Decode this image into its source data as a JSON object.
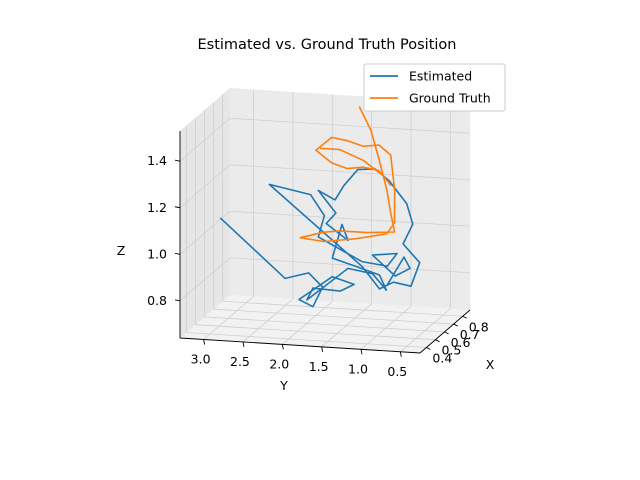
{
  "chart_data": {
    "type": "line",
    "projection": "3d",
    "title": "Estimated vs. Ground Truth Position",
    "xlabel": "X",
    "ylabel": "Y",
    "zlabel": "Z",
    "xlim": [
      0.33,
      0.88
    ],
    "ylim": [
      0.25,
      3.3
    ],
    "zlim": [
      0.64,
      1.53
    ],
    "x_ticks": [
      0.4,
      0.5,
      0.6,
      0.7,
      0.8
    ],
    "x_tick_labels": [
      "0.4",
      "0.5",
      "0.6",
      "0.7",
      "0.8"
    ],
    "y_ticks": [
      0.5,
      1.0,
      1.5,
      2.0,
      2.5,
      3.0
    ],
    "y_tick_labels": [
      "0.5",
      "1.0",
      "1.5",
      "2.0",
      "2.5",
      "3.0"
    ],
    "z_ticks": [
      0.8,
      1.0,
      1.2,
      1.4
    ],
    "z_tick_labels": [
      "0.8",
      "1.0",
      "1.2",
      "1.4"
    ],
    "grid": true,
    "legend_position": "top-right",
    "series": [
      {
        "name": "Estimated",
        "color": "#1f77b4",
        "points": [
          [
            0.6,
            3.1,
            1.07
          ],
          [
            0.62,
            2.3,
            0.82
          ],
          [
            0.62,
            2.0,
            0.85
          ],
          [
            0.6,
            1.8,
            0.8
          ],
          [
            0.58,
            1.9,
            0.72
          ],
          [
            0.6,
            2.1,
            0.74
          ],
          [
            0.62,
            1.7,
            0.84
          ],
          [
            0.6,
            1.4,
            0.82
          ],
          [
            0.62,
            1.6,
            0.78
          ],
          [
            0.58,
            1.9,
            0.8
          ],
          [
            0.6,
            2.0,
            0.74
          ],
          [
            0.62,
            1.5,
            0.88
          ],
          [
            0.63,
            1.2,
            0.86
          ],
          [
            0.61,
            1.0,
            0.8
          ],
          [
            0.62,
            1.1,
            0.86
          ],
          [
            0.6,
            1.4,
            0.9
          ],
          [
            0.62,
            1.7,
            0.92
          ],
          [
            0.64,
            1.6,
            1.06
          ],
          [
            0.62,
            1.5,
            1.0
          ],
          [
            0.64,
            1.8,
            1.06
          ],
          [
            0.66,
            1.7,
            1.1
          ],
          [
            0.64,
            1.9,
            1.2
          ],
          [
            0.65,
            1.7,
            1.16
          ],
          [
            0.66,
            1.6,
            1.22
          ],
          [
            0.64,
            1.4,
            1.3
          ],
          [
            0.66,
            1.2,
            1.3
          ],
          [
            0.64,
            1.0,
            1.26
          ],
          [
            0.66,
            0.8,
            1.16
          ],
          [
            0.64,
            0.7,
            1.08
          ],
          [
            0.62,
            0.8,
            1.0
          ],
          [
            0.63,
            0.6,
            0.92
          ],
          [
            0.62,
            0.7,
            0.82
          ],
          [
            0.6,
            0.9,
            0.84
          ],
          [
            0.62,
            1.1,
            0.8
          ],
          [
            0.6,
            1.3,
            0.9
          ],
          [
            0.62,
            2.5,
            1.22
          ],
          [
            0.64,
            2.0,
            1.18
          ],
          [
            0.62,
            1.8,
            1.1
          ],
          [
            0.64,
            1.9,
            1.0
          ],
          [
            0.62,
            1.6,
            0.96
          ],
          [
            0.6,
            1.3,
            0.92
          ],
          [
            0.62,
            1.0,
            0.9
          ],
          [
            0.64,
            0.9,
            0.95
          ],
          [
            0.63,
            1.2,
            0.94
          ],
          [
            0.62,
            0.9,
            0.86
          ],
          [
            0.61,
            0.7,
            0.9
          ],
          [
            0.63,
            0.8,
            0.94
          ],
          [
            0.62,
            1.0,
            0.82
          ]
        ]
      },
      {
        "name": "Ground Truth",
        "color": "#ff7f0e",
        "points": [
          [
            0.7,
            1.45,
            1.55
          ],
          [
            0.7,
            1.3,
            1.45
          ],
          [
            0.7,
            1.2,
            1.33
          ],
          [
            0.7,
            1.1,
            1.2
          ],
          [
            0.7,
            1.05,
            1.1
          ],
          [
            0.7,
            1.0,
            1.02
          ],
          [
            0.7,
            1.35,
            1.01
          ],
          [
            0.7,
            1.7,
            1.01
          ],
          [
            0.7,
            1.9,
            1.0
          ],
          [
            0.7,
            2.2,
            0.97
          ],
          [
            0.7,
            1.9,
            0.96
          ],
          [
            0.7,
            1.5,
            0.98
          ],
          [
            0.7,
            1.1,
            1.01
          ],
          [
            0.7,
            1.0,
            1.06
          ],
          [
            0.7,
            1.0,
            1.2
          ],
          [
            0.7,
            1.05,
            1.35
          ],
          [
            0.7,
            1.2,
            1.39
          ],
          [
            0.7,
            1.4,
            1.38
          ],
          [
            0.7,
            1.6,
            1.4
          ],
          [
            0.7,
            1.8,
            1.41
          ],
          [
            0.7,
            2.0,
            1.35
          ],
          [
            0.7,
            1.8,
            1.3
          ],
          [
            0.7,
            1.6,
            1.28
          ],
          [
            0.7,
            1.4,
            1.29
          ],
          [
            0.7,
            1.2,
            1.28
          ],
          [
            0.7,
            1.05,
            1.22
          ],
          [
            0.7,
            1.15,
            1.26
          ],
          [
            0.7,
            1.4,
            1.32
          ],
          [
            0.7,
            1.7,
            1.36
          ],
          [
            0.7,
            1.95,
            1.36
          ]
        ]
      }
    ]
  }
}
